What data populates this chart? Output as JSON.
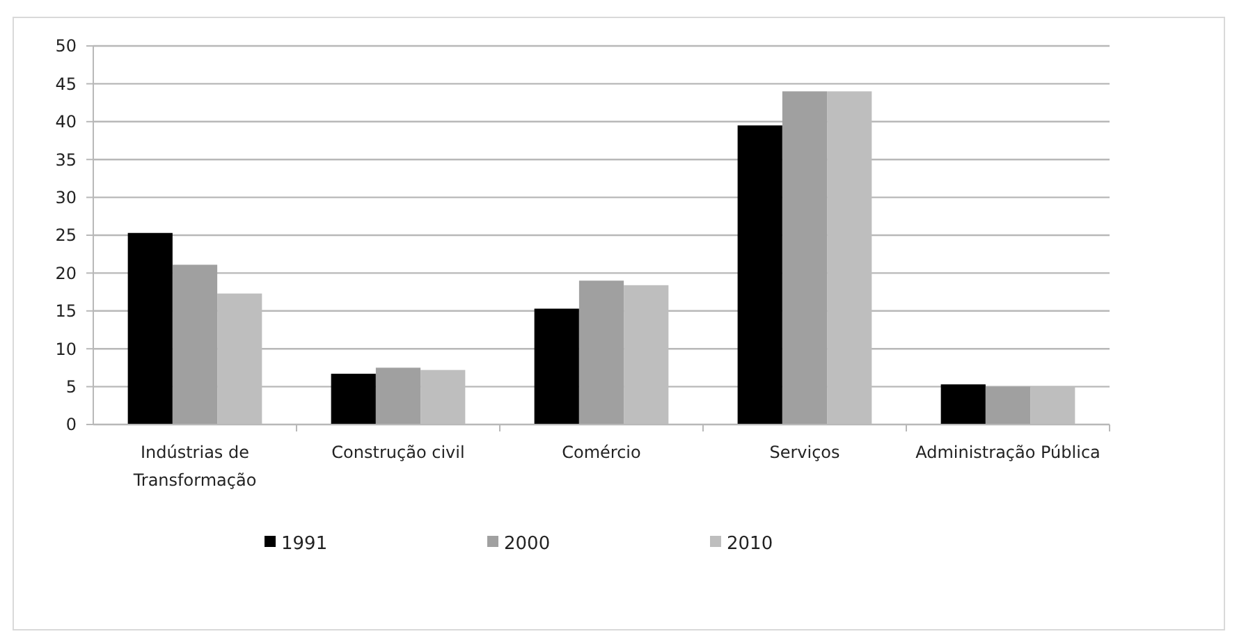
{
  "chart_data": {
    "type": "bar",
    "categories": [
      "Indústrias de Transformação",
      "Construção civil",
      "Comércio",
      "Serviços",
      "Administração Pública"
    ],
    "series": [
      {
        "name": "1991",
        "color": "#000000",
        "values": [
          25.3,
          6.7,
          15.3,
          39.5,
          5.3
        ]
      },
      {
        "name": "2000",
        "color": "#a0a0a0",
        "values": [
          21.1,
          7.5,
          19,
          44,
          5
        ]
      },
      {
        "name": "2010",
        "color": "#bebebe",
        "values": [
          17.3,
          7.2,
          18.4,
          44,
          5
        ]
      }
    ],
    "ylim": [
      0,
      50
    ],
    "yticks": [
      0,
      5,
      10,
      15,
      20,
      25,
      30,
      35,
      40,
      45,
      50
    ],
    "grid": "y",
    "legend": "bottom"
  }
}
